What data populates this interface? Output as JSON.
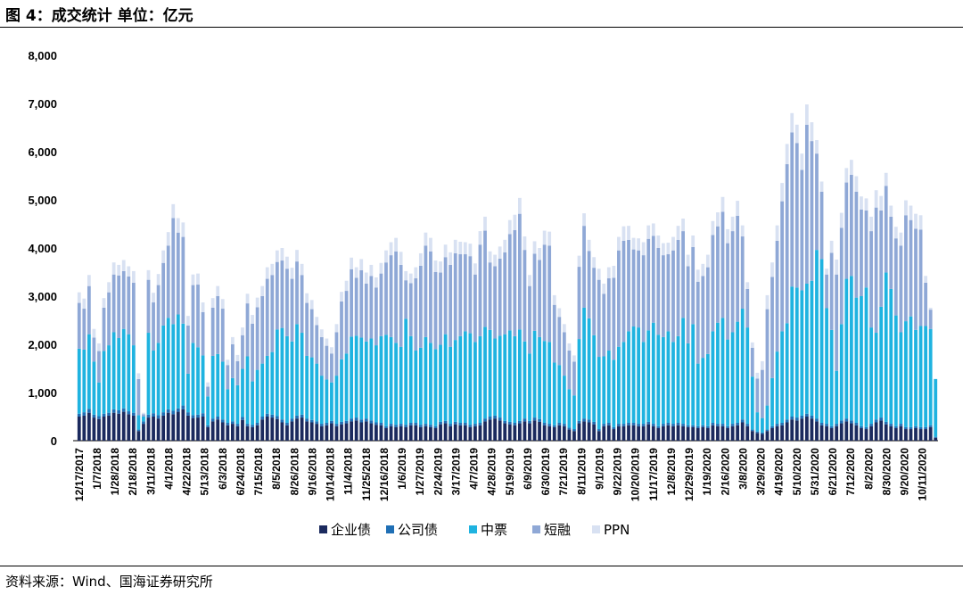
{
  "header": {
    "title": "图 4：成交统计  单位：亿元"
  },
  "footer": {
    "source": "资料来源：Wind、国海证券研究所"
  },
  "chart_data": {
    "type": "bar",
    "stacked": true,
    "ylim": [
      0,
      8000
    ],
    "yticks": [
      "0",
      "1,000",
      "2,000",
      "3,000",
      "4,000",
      "5,000",
      "6,000",
      "7,000",
      "8,000"
    ],
    "tick_labels": [
      "12/17/2017",
      "1/7/2018",
      "1/28/2018",
      "2/18/2018",
      "3/11/2018",
      "4/1/2018",
      "4/22/2018",
      "5/13/2018",
      "6/3/2018",
      "6/24/2018",
      "7/15/2018",
      "8/5/2018",
      "8/26/2018",
      "9/16/2018",
      "10/14/2018",
      "11/4/2018",
      "11/25/2018",
      "12/16/2018",
      "1/6/2019",
      "1/27/2019",
      "2/24/2019",
      "3/17/2019",
      "4/7/2019",
      "4/28/2019",
      "5/19/2019",
      "6/9/2019",
      "6/30/2019",
      "7/21/2019",
      "8/11/2019",
      "9/1/2019",
      "9/22/2019",
      "10/20/2019",
      "11/17/2019",
      "12/8/2019",
      "12/29/2019",
      "1/19/2020",
      "2/16/2020",
      "3/8/2020",
      "3/29/2020",
      "4/19/2020",
      "5/10/2020",
      "5/31/2020",
      "6/21/2020",
      "7/12/2020",
      "8/2/2020",
      "8/30/2020",
      "9/20/2020",
      "10/11/2020"
    ],
    "legend_position": "bottom",
    "grid": false,
    "series": [
      {
        "name": "企业债",
        "color": "#1b2a5e",
        "values": [
          500,
          520,
          580,
          480,
          450,
          500,
          520,
          580,
          560,
          600,
          550,
          520,
          200,
          350,
          480,
          500,
          460,
          520,
          580,
          550,
          600,
          650,
          520,
          470,
          480,
          500,
          280,
          400,
          440,
          380,
          320,
          350,
          300,
          430,
          300,
          280,
          320,
          440,
          500,
          480,
          450,
          380,
          320,
          400,
          460,
          480,
          400,
          380,
          350,
          300,
          320,
          360,
          300,
          340,
          360,
          400,
          420,
          380,
          400,
          360,
          330,
          320,
          260,
          300,
          280,
          300,
          280,
          320,
          320,
          280,
          300,
          280,
          260,
          340,
          360,
          300,
          340,
          320,
          320,
          280,
          300,
          320,
          400,
          440,
          460,
          420,
          360,
          340,
          320,
          360,
          400,
          360,
          420,
          390,
          320,
          300,
          280,
          320,
          300,
          230,
          200,
          360,
          400,
          380,
          340,
          200,
          300,
          320,
          240,
          300,
          300,
          320,
          320,
          300,
          300,
          340,
          300,
          260,
          300,
          320,
          300,
          320,
          300,
          280,
          280,
          260,
          280,
          260,
          320,
          300,
          300,
          260,
          300,
          320,
          380,
          300,
          200,
          160,
          140,
          200,
          260,
          300,
          320,
          380,
          440,
          420,
          460,
          500,
          460,
          400,
          320,
          300,
          260,
          300,
          360,
          400,
          360,
          320,
          260,
          240,
          300,
          380,
          420,
          340,
          300,
          260,
          300,
          240,
          240,
          260,
          240,
          240,
          280,
          60
        ]
      },
      {
        "name": "公司债",
        "color": "#1f6fb5",
        "values": [
          60,
          70,
          80,
          60,
          60,
          60,
          60,
          70,
          70,
          70,
          60,
          60,
          30,
          50,
          60,
          70,
          70,
          70,
          70,
          70,
          70,
          80,
          70,
          60,
          60,
          70,
          40,
          60,
          60,
          60,
          50,
          50,
          50,
          60,
          50,
          50,
          50,
          60,
          60,
          60,
          60,
          60,
          50,
          60,
          60,
          60,
          60,
          50,
          50,
          50,
          50,
          50,
          50,
          50,
          50,
          60,
          60,
          60,
          60,
          60,
          50,
          50,
          40,
          50,
          50,
          50,
          50,
          50,
          50,
          50,
          50,
          50,
          40,
          50,
          50,
          50,
          50,
          50,
          50,
          50,
          50,
          50,
          60,
          60,
          60,
          60,
          50,
          50,
          50,
          50,
          60,
          50,
          60,
          60,
          50,
          50,
          40,
          50,
          50,
          40,
          40,
          50,
          60,
          60,
          50,
          40,
          50,
          50,
          40,
          50,
          50,
          50,
          50,
          50,
          50,
          50,
          50,
          40,
          50,
          50,
          50,
          50,
          50,
          40,
          40,
          40,
          40,
          40,
          50,
          50,
          50,
          40,
          50,
          50,
          60,
          50,
          30,
          30,
          30,
          30,
          40,
          50,
          50,
          60,
          60,
          60,
          60,
          60,
          60,
          60,
          50,
          50,
          40,
          50,
          60,
          60,
          60,
          50,
          40,
          40,
          50,
          60,
          60,
          50,
          50,
          40,
          50,
          40,
          40,
          40,
          40,
          40,
          40,
          20
        ]
      },
      {
        "name": "中票",
        "color": "#1fb3e0",
        "values": [
          1350,
          1300,
          1550,
          1100,
          700,
          1300,
          1400,
          1600,
          1500,
          1650,
          1600,
          1400,
          300,
          100,
          1700,
          1300,
          1500,
          1800,
          1900,
          1800,
          1950,
          1700,
          800,
          1500,
          1400,
          1200,
          600,
          1300,
          1300,
          1200,
          700,
          900,
          800,
          1000,
          1400,
          900,
          1100,
          1100,
          1200,
          1300,
          1800,
          1900,
          1800,
          1600,
          1900,
          1700,
          1300,
          1300,
          1200,
          1000,
          900,
          800,
          1000,
          1300,
          1400,
          1700,
          1700,
          1700,
          1600,
          1700,
          1600,
          1800,
          1900,
          1800,
          1700,
          1600,
          2200,
          1800,
          1500,
          1600,
          1800,
          1700,
          1600,
          1600,
          1800,
          1600,
          1700,
          1800,
          1900,
          1900,
          1700,
          1800,
          1900,
          1800,
          1600,
          1700,
          1800,
          1900,
          1800,
          1900,
          1600,
          1400,
          1800,
          1700,
          1700,
          1700,
          1300,
          1200,
          1000,
          800,
          700,
          1700,
          2300,
          2100,
          1800,
          1500,
          1400,
          1500,
          1400,
          1600,
          1700,
          1900,
          2000,
          2000,
          1700,
          1900,
          2100,
          1900,
          1800,
          1900,
          1700,
          1800,
          2200,
          1700,
          2100,
          1300,
          1400,
          1500,
          1900,
          2100,
          2200,
          1800,
          1900,
          2100,
          2300,
          2000,
          1100,
          400,
          300,
          500,
          1000,
          1500,
          1900,
          2000,
          2700,
          2700,
          2600,
          2700,
          2800,
          3500,
          3400,
          2400,
          2000,
          1100,
          2000,
          2900,
          3000,
          2600,
          2700,
          2900,
          2000,
          1800,
          2300,
          3100,
          2800,
          2300,
          1900,
          2200,
          2300,
          2000,
          2100,
          2100,
          2000,
          1200,
          200
        ]
      },
      {
        "name": "短融",
        "color": "#8fa8d6",
        "values": [
          950,
          850,
          1000,
          500,
          650,
          900,
          1100,
          1200,
          1300,
          1200,
          1200,
          1300,
          750,
          50,
          1100,
          1000,
          1200,
          1300,
          1500,
          2200,
          1700,
          1800,
          1000,
          1200,
          1300,
          900,
          200,
          1000,
          1200,
          1100,
          500,
          700,
          500,
          700,
          1100,
          1200,
          1300,
          1400,
          1600,
          1600,
          1400,
          1400,
          1400,
          1300,
          1300,
          1200,
          1100,
          1000,
          800,
          800,
          700,
          600,
          900,
          1200,
          1300,
          1400,
          1200,
          1400,
          1200,
          1300,
          1200,
          1300,
          1500,
          1700,
          1900,
          1700,
          800,
          1100,
          1500,
          1700,
          1900,
          1900,
          1600,
          1500,
          1600,
          1700,
          1800,
          1700,
          1600,
          1600,
          1400,
          1900,
          2000,
          1400,
          1500,
          1600,
          1700,
          2000,
          2200,
          2400,
          1900,
          1400,
          1600,
          1600,
          2000,
          2000,
          1200,
          1000,
          900,
          800,
          700,
          1500,
          1700,
          1400,
          1400,
          1600,
          1300,
          1500,
          1700,
          2000,
          2100,
          1900,
          1600,
          1600,
          1800,
          1900,
          1800,
          1800,
          1700,
          1600,
          1900,
          2000,
          1800,
          1600,
          1600,
          1700,
          1700,
          1800,
          2000,
          2000,
          2200,
          2000,
          2100,
          2200,
          1500,
          800,
          600,
          700,
          1000,
          2000,
          2100,
          2300,
          2700,
          3300,
          3200,
          3000,
          2500,
          3300,
          2900,
          2000,
          1400,
          700,
          1600,
          2000,
          2000,
          2000,
          2100,
          2200,
          1800,
          1600,
          2000,
          2600,
          2000,
          1800,
          1500,
          1600,
          1800,
          2200,
          2000,
          2100,
          2000,
          900,
          400
        ]
      },
      {
        "name": "PPN",
        "color": "#d8e1f2",
        "values": [
          220,
          210,
          230,
          180,
          160,
          200,
          210,
          250,
          220,
          230,
          210,
          240,
          120,
          30,
          200,
          200,
          230,
          260,
          280,
          290,
          300,
          300,
          200,
          220,
          230,
          200,
          90,
          200,
          210,
          200,
          110,
          150,
          130,
          160,
          200,
          180,
          200,
          210,
          240,
          230,
          240,
          260,
          250,
          230,
          240,
          230,
          200,
          190,
          170,
          160,
          150,
          130,
          170,
          200,
          210,
          240,
          220,
          230,
          230,
          230,
          210,
          220,
          250,
          270,
          280,
          270,
          190,
          200,
          230,
          260,
          270,
          280,
          240,
          230,
          260,
          260,
          280,
          260,
          250,
          260,
          230,
          280,
          290,
          230,
          240,
          250,
          260,
          290,
          320,
          330,
          280,
          230,
          260,
          250,
          290,
          290,
          200,
          180,
          170,
          150,
          130,
          230,
          260,
          230,
          220,
          230,
          210,
          230,
          250,
          280,
          300,
          290,
          240,
          250,
          270,
          280,
          260,
          260,
          250,
          240,
          280,
          290,
          260,
          240,
          240,
          250,
          250,
          260,
          290,
          290,
          310,
          290,
          300,
          310,
          230,
          140,
          110,
          120,
          180,
          290,
          300,
          320,
          380,
          420,
          400,
          380,
          340,
          420,
          390,
          280,
          210,
          120,
          250,
          310,
          310,
          300,
          310,
          320,
          270,
          250,
          300,
          360,
          300,
          270,
          230,
          240,
          270,
          310,
          300,
          310,
          300,
          140,
          40
        ]
      }
    ]
  }
}
